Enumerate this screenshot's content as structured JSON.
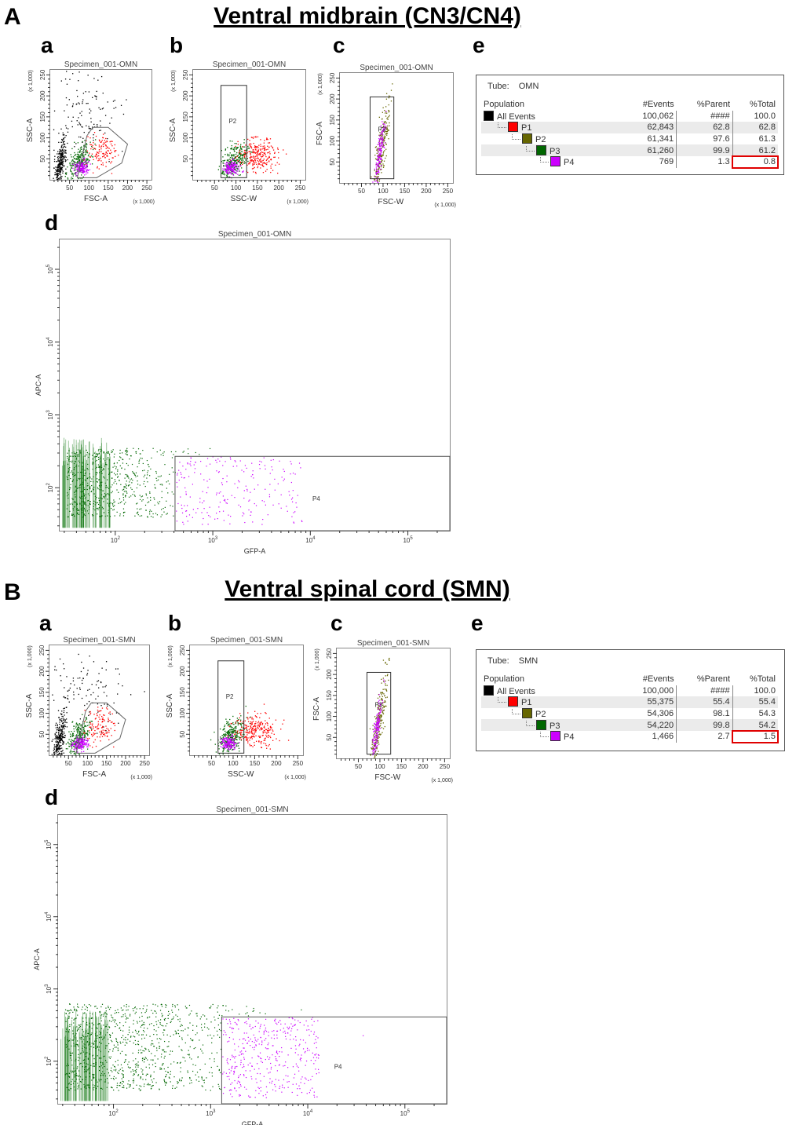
{
  "sections": [
    {
      "letter": "A",
      "title": "Ventral midbrain (CN3/CN4)",
      "panel_letters": [
        "a",
        "b",
        "c",
        "e",
        "d"
      ],
      "table": {
        "tube_label": "Tube:",
        "tube": "OMN",
        "headers": [
          "Population",
          "#Events",
          "%Parent",
          "%Total"
        ],
        "rows": [
          [
            "All Events",
            "100,062",
            "####",
            "100.0"
          ],
          [
            "P1",
            "62,843",
            "62.8",
            "62.8"
          ],
          [
            "P2",
            "61,341",
            "97.6",
            "61.3"
          ],
          [
            "P3",
            "61,260",
            "99.9",
            "61.2"
          ],
          [
            "P4",
            "769",
            "1.3",
            "0.8"
          ]
        ]
      }
    },
    {
      "letter": "B",
      "title": "Ventral spinal cord (SMN)",
      "panel_letters": [
        "a",
        "b",
        "c",
        "e",
        "d"
      ],
      "table": {
        "tube_label": "Tube:",
        "tube": "SMN",
        "headers": [
          "Population",
          "#Events",
          "%Parent",
          "%Total"
        ],
        "rows": [
          [
            "All Events",
            "100,000",
            "####",
            "100.0"
          ],
          [
            "P1",
            "55,375",
            "55.4",
            "55.4"
          ],
          [
            "P2",
            "54,306",
            "98.1",
            "54.3"
          ],
          [
            "P3",
            "54,220",
            "99.8",
            "54.2"
          ],
          [
            "P4",
            "1,466",
            "2.7",
            "1.5"
          ]
        ]
      }
    }
  ],
  "colors": {
    "All Events": "#000000",
    "P1": "#ff0000",
    "P2": "#666600",
    "P3": "#006600",
    "P4": "#cc00ff",
    "highlight": "#e00000"
  },
  "chart_data": [
    {
      "type": "scatter",
      "panel": "A-a",
      "title": "Specimen_001-OMN",
      "xlabel": "FSC-A",
      "ylabel": "SSC-A",
      "scale_label": "(x 1,000)",
      "xticks": [
        "50",
        "100",
        "150",
        "200",
        "250"
      ],
      "yticks": [
        "50",
        "100",
        "150",
        "200",
        "250"
      ],
      "xlim": [
        0,
        262
      ],
      "ylim": [
        0,
        262
      ],
      "gate": "P1",
      "gate_shape": "polygon"
    },
    {
      "type": "scatter",
      "panel": "A-b",
      "title": "Specimen_001-OMN",
      "xlabel": "SSC-W",
      "ylabel": "SSC-A",
      "scale_label": "(x 1,000)",
      "xticks": [
        "50",
        "100",
        "150",
        "200",
        "250"
      ],
      "yticks": [
        "50",
        "100",
        "150",
        "200",
        "250"
      ],
      "xlim": [
        0,
        262
      ],
      "ylim": [
        0,
        262
      ],
      "gate": "P2",
      "gate_x": [
        65,
        125
      ],
      "gate_y": [
        5,
        225
      ]
    },
    {
      "type": "scatter",
      "panel": "A-c",
      "title": "Specimen_001-OMN",
      "xlabel": "FSC-W",
      "ylabel": "FSC-A",
      "scale_label": "(x 1,000)",
      "xticks": [
        "50",
        "100",
        "150",
        "200",
        "250"
      ],
      "yticks": [
        "50",
        "100",
        "150",
        "200",
        "250"
      ],
      "xlim": [
        0,
        262
      ],
      "ylim": [
        0,
        262
      ],
      "gate": "P3",
      "gate_x": [
        70,
        125
      ],
      "gate_y": [
        10,
        205
      ]
    },
    {
      "type": "scatter",
      "panel": "A-d",
      "title": "Specimen_001-OMN",
      "xlabel": "GFP-A",
      "ylabel": "APC-A",
      "xscale": "log",
      "yscale": "log",
      "xticks": [
        "2",
        "3",
        "4",
        "5"
      ],
      "yticks": [
        "2",
        "3",
        "4",
        "5"
      ],
      "tick_base": "10",
      "xlim_log10": [
        1.43,
        5.43
      ],
      "ylim_log10": [
        1.41,
        5.41
      ],
      "gate": "P4",
      "gate_x_min": 410,
      "gate_y_max": 270
    },
    {
      "type": "scatter",
      "panel": "B-a",
      "title": "Specimen_001-SMN",
      "xlabel": "FSC-A",
      "ylabel": "SSC-A",
      "scale_label": "(x 1,000)",
      "xticks": [
        "50",
        "100",
        "150",
        "200",
        "250"
      ],
      "yticks": [
        "50",
        "100",
        "150",
        "200",
        "250"
      ],
      "xlim": [
        0,
        262
      ],
      "ylim": [
        0,
        262
      ],
      "gate": "P1",
      "gate_shape": "polygon"
    },
    {
      "type": "scatter",
      "panel": "B-b",
      "title": "Specimen_001-SMN",
      "xlabel": "SSC-W",
      "ylabel": "SSC-A",
      "scale_label": "(x 1,000)",
      "xticks": [
        "50",
        "100",
        "150",
        "200",
        "250"
      ],
      "yticks": [
        "50",
        "100",
        "150",
        "200",
        "250"
      ],
      "xlim": [
        0,
        262
      ],
      "ylim": [
        0,
        262
      ],
      "gate": "P2",
      "gate_x": [
        65,
        125
      ],
      "gate_y": [
        5,
        225
      ]
    },
    {
      "type": "scatter",
      "panel": "B-c",
      "title": "Specimen_001-SMN",
      "xlabel": "FSC-W",
      "ylabel": "FSC-A",
      "scale_label": "(x 1,000)",
      "xticks": [
        "50",
        "100",
        "150",
        "200",
        "250"
      ],
      "yticks": [
        "50",
        "100",
        "150",
        "200",
        "250"
      ],
      "xlim": [
        0,
        262
      ],
      "ylim": [
        0,
        262
      ],
      "gate": "P3",
      "gate_x": [
        70,
        125
      ],
      "gate_y": [
        10,
        205
      ]
    },
    {
      "type": "scatter",
      "panel": "B-d",
      "title": "Specimen_001-SMN",
      "xlabel": "GFP-A",
      "ylabel": "APC-A",
      "xscale": "log",
      "yscale": "log",
      "xticks": [
        "2",
        "3",
        "4",
        "5"
      ],
      "yticks": [
        "2",
        "3",
        "4",
        "5"
      ],
      "tick_base": "10",
      "xlim_log10": [
        1.43,
        5.43
      ],
      "ylim_log10": [
        1.41,
        5.41
      ],
      "gate": "P4",
      "gate_x_min": 1300,
      "gate_y_max": 410
    }
  ]
}
